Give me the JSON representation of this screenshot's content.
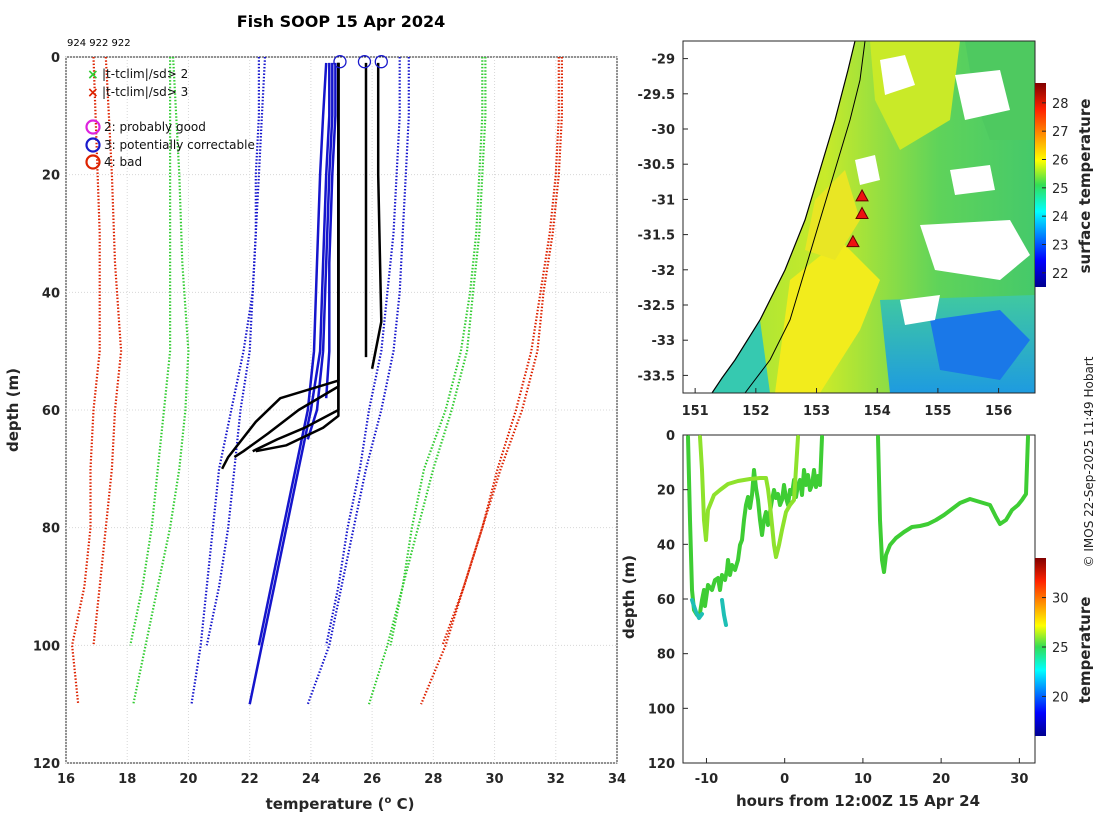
{
  "title": "Fish SOOP 15 Apr 2024",
  "profile_ids": "924 922 922",
  "credit": "© IMOS 22-Sep-2025 11:49 Hobart",
  "colors": {
    "clim2": "#33cc33",
    "clim3": "#dd2200",
    "flag3": "#1515cc",
    "good": "#000000",
    "circle_blue": "#1a1acc"
  },
  "legend": {
    "items": [
      {
        "marker": "x",
        "color": "#33cc33",
        "label": "|t-tclim|/sd> 2"
      },
      {
        "marker": "x",
        "color": "#dd2200",
        "label": "|t-tclim|/sd> 3"
      },
      {
        "marker": "o",
        "color": "#dd22dd",
        "label": "2: probably good"
      },
      {
        "marker": "o",
        "color": "#1a1acc",
        "label": "3: potentially correctable"
      },
      {
        "marker": "o",
        "color": "#dd2200",
        "label": "4: bad"
      }
    ]
  },
  "chart_data": [
    {
      "type": "line",
      "name": "profile",
      "title": "Fish SOOP 15 Apr 2024",
      "xlabel": "temperature (",
      "xlabel_sup": "o",
      "xlabel_suffix": " C)",
      "ylabel": "depth (m)",
      "xlim": [
        16,
        34
      ],
      "ylim": [
        0,
        120
      ],
      "xticks": [
        "16",
        "18",
        "20",
        "22",
        "24",
        "26",
        "28",
        "30",
        "32",
        "34"
      ],
      "yticks": [
        "0",
        "20",
        "40",
        "60",
        "80",
        "100",
        "120"
      ],
      "y_reversed": true,
      "grid": true,
      "clim_lines": [
        {
          "class": "clim3",
          "points": [
            [
              17.3,
              0
            ],
            [
              17.4,
              10
            ],
            [
              17.5,
              20
            ],
            [
              17.6,
              35
            ],
            [
              17.8,
              50
            ],
            [
              17.6,
              60
            ],
            [
              17.5,
              70
            ],
            [
              17.3,
              80
            ],
            [
              17.1,
              90
            ],
            [
              16.9,
              100
            ]
          ]
        },
        {
          "class": "clim3",
          "points": [
            [
              16.9,
              0
            ],
            [
              17.0,
              15
            ],
            [
              17.1,
              30
            ],
            [
              17.1,
              50
            ],
            [
              16.9,
              60
            ],
            [
              16.8,
              70
            ],
            [
              16.8,
              80
            ],
            [
              16.6,
              90
            ],
            [
              16.2,
              100
            ],
            [
              16.4,
              110
            ]
          ]
        },
        {
          "class": "clim2",
          "points": [
            [
              19.5,
              0
            ],
            [
              19.6,
              10
            ],
            [
              19.7,
              20
            ],
            [
              19.8,
              35
            ],
            [
              20.0,
              50
            ],
            [
              19.9,
              60
            ],
            [
              19.7,
              70
            ],
            [
              19.4,
              80
            ],
            [
              19.0,
              90
            ],
            [
              18.6,
              100
            ],
            [
              18.2,
              110
            ]
          ]
        },
        {
          "class": "clim2",
          "points": [
            [
              19.4,
              0
            ],
            [
              19.4,
              10
            ],
            [
              19.4,
              20
            ],
            [
              19.4,
              35
            ],
            [
              19.4,
              50
            ],
            [
              19.2,
              60
            ],
            [
              19.0,
              70
            ],
            [
              18.8,
              80
            ],
            [
              18.5,
              90
            ],
            [
              18.1,
              100
            ]
          ]
        },
        {
          "class": "flag3",
          "points": [
            [
              22.5,
              0
            ],
            [
              22.4,
              10
            ],
            [
              22.3,
              20
            ],
            [
              22.2,
              30
            ],
            [
              22.1,
              40
            ],
            [
              21.8,
              50
            ],
            [
              21.4,
              60
            ],
            [
              21.0,
              70
            ],
            [
              20.8,
              80
            ],
            [
              20.6,
              90
            ],
            [
              20.4,
              100
            ],
            [
              20.1,
              110
            ]
          ]
        },
        {
          "class": "flag3",
          "points": [
            [
              22.3,
              0
            ],
            [
              22.3,
              10
            ],
            [
              22.2,
              20
            ],
            [
              22.2,
              30
            ],
            [
              22.1,
              40
            ],
            [
              22.0,
              50
            ],
            [
              21.7,
              60
            ],
            [
              21.5,
              70
            ],
            [
              21.3,
              80
            ],
            [
              21.0,
              90
            ],
            [
              20.6,
              100
            ]
          ]
        },
        {
          "class": "flag3",
          "points": [
            [
              27.2,
              0
            ],
            [
              27.2,
              10
            ],
            [
              27.1,
              20
            ],
            [
              27.0,
              30
            ],
            [
              26.9,
              40
            ],
            [
              26.7,
              50
            ],
            [
              26.3,
              60
            ],
            [
              25.8,
              70
            ],
            [
              25.4,
              80
            ],
            [
              25.0,
              90
            ],
            [
              24.6,
              100
            ],
            [
              23.9,
              110
            ]
          ]
        },
        {
          "class": "flag3",
          "points": [
            [
              26.9,
              0
            ],
            [
              26.9,
              10
            ],
            [
              26.8,
              20
            ],
            [
              26.7,
              30
            ],
            [
              26.5,
              40
            ],
            [
              26.3,
              50
            ],
            [
              25.9,
              60
            ],
            [
              25.6,
              70
            ],
            [
              25.2,
              80
            ],
            [
              24.9,
              90
            ],
            [
              24.5,
              100
            ]
          ]
        },
        {
          "class": "clim2",
          "points": [
            [
              29.7,
              0
            ],
            [
              29.7,
              10
            ],
            [
              29.6,
              20
            ],
            [
              29.5,
              30
            ],
            [
              29.3,
              40
            ],
            [
              29.1,
              50
            ],
            [
              28.6,
              60
            ],
            [
              28.0,
              70
            ],
            [
              27.5,
              80
            ],
            [
              27.0,
              90
            ],
            [
              26.5,
              100
            ],
            [
              25.9,
              110
            ]
          ]
        },
        {
          "class": "clim2",
          "points": [
            [
              29.6,
              0
            ],
            [
              29.6,
              10
            ],
            [
              29.5,
              20
            ],
            [
              29.4,
              30
            ],
            [
              29.2,
              40
            ],
            [
              28.9,
              50
            ],
            [
              28.4,
              60
            ],
            [
              27.7,
              70
            ],
            [
              27.3,
              80
            ],
            [
              27.0,
              90
            ],
            [
              26.6,
              100
            ]
          ]
        },
        {
          "class": "clim3",
          "points": [
            [
              32.2,
              0
            ],
            [
              32.2,
              10
            ],
            [
              32.1,
              20
            ],
            [
              31.9,
              30
            ],
            [
              31.6,
              40
            ],
            [
              31.4,
              50
            ],
            [
              30.9,
              60
            ],
            [
              30.2,
              70
            ],
            [
              29.6,
              80
            ],
            [
              29.0,
              90
            ],
            [
              28.4,
              100
            ],
            [
              27.6,
              110
            ]
          ]
        },
        {
          "class": "clim3",
          "points": [
            [
              32.1,
              0
            ],
            [
              32.1,
              10
            ],
            [
              32.0,
              20
            ],
            [
              31.8,
              30
            ],
            [
              31.5,
              40
            ],
            [
              31.2,
              50
            ],
            [
              30.7,
              60
            ],
            [
              30.1,
              70
            ],
            [
              29.6,
              80
            ],
            [
              29.0,
              90
            ],
            [
              28.3,
              100
            ]
          ]
        }
      ],
      "flag3_profiles": [
        {
          "points": [
            [
              24.6,
              1
            ],
            [
              24.6,
              10
            ],
            [
              24.5,
              20
            ],
            [
              24.4,
              35
            ],
            [
              24.3,
              50
            ],
            [
              24.0,
              60
            ],
            [
              23.6,
              70
            ],
            [
              23.2,
              80
            ],
            [
              22.8,
              90
            ],
            [
              22.4,
              100
            ],
            [
              22.0,
              110
            ]
          ]
        },
        {
          "points": [
            [
              24.5,
              1
            ],
            [
              24.4,
              10
            ],
            [
              24.3,
              20
            ],
            [
              24.2,
              35
            ],
            [
              24.1,
              50
            ],
            [
              23.9,
              60
            ],
            [
              23.5,
              70
            ],
            [
              23.1,
              80
            ],
            [
              22.7,
              90
            ],
            [
              22.3,
              100
            ]
          ]
        },
        {
          "points": [
            [
              24.7,
              1
            ],
            [
              24.7,
              10
            ],
            [
              24.6,
              20
            ],
            [
              24.5,
              35
            ],
            [
              24.4,
              50
            ],
            [
              24.2,
              60
            ],
            [
              23.9,
              65
            ]
          ]
        },
        {
          "points": [
            [
              24.8,
              1
            ],
            [
              24.8,
              10
            ],
            [
              24.7,
              20
            ],
            [
              24.6,
              35
            ],
            [
              24.6,
              50
            ],
            [
              24.5,
              58
            ]
          ]
        }
      ],
      "good_profiles": [
        {
          "points": [
            [
              24.9,
              1
            ],
            [
              24.9,
              20
            ],
            [
              24.9,
              40
            ],
            [
              24.9,
              55
            ],
            [
              23.0,
              58
            ],
            [
              22.2,
              62
            ],
            [
              21.3,
              68
            ],
            [
              21.1,
              70
            ]
          ]
        },
        {
          "points": [
            [
              24.9,
              1
            ],
            [
              24.9,
              20
            ],
            [
              24.9,
              40
            ],
            [
              24.9,
              56
            ],
            [
              23.6,
              60
            ],
            [
              22.6,
              64
            ],
            [
              21.8,
              67
            ],
            [
              21.5,
              68
            ]
          ]
        },
        {
          "points": [
            [
              24.9,
              1
            ],
            [
              24.9,
              25
            ],
            [
              24.9,
              45
            ],
            [
              24.9,
              60
            ],
            [
              23.8,
              63
            ],
            [
              22.9,
              65
            ],
            [
              22.1,
              67
            ]
          ]
        },
        {
          "points": [
            [
              24.9,
              1
            ],
            [
              24.9,
              30
            ],
            [
              24.9,
              50
            ],
            [
              24.9,
              61
            ],
            [
              24.4,
              63
            ],
            [
              23.2,
              66
            ],
            [
              22.2,
              67
            ]
          ]
        },
        {
          "points": [
            [
              25.8,
              1
            ],
            [
              25.8,
              20
            ],
            [
              25.8,
              40
            ],
            [
              25.8,
              51
            ]
          ]
        },
        {
          "points": [
            [
              26.2,
              1
            ],
            [
              26.2,
              20
            ],
            [
              26.3,
              45
            ],
            [
              26.0,
              53
            ]
          ]
        }
      ],
      "top_circles": [
        [
          24.95,
          0.8
        ],
        [
          25.75,
          0.8
        ],
        [
          26.3,
          0.8
        ]
      ]
    },
    {
      "type": "heatmap",
      "name": "sst-map",
      "colorbar_label": "surface temperature",
      "xlim": [
        150.8,
        156.6
      ],
      "ylim": [
        -33.75,
        -28.75
      ],
      "xticks": [
        "151",
        "152",
        "153",
        "154",
        "155",
        "156"
      ],
      "yticks": [
        "-29",
        "-29.5",
        "-30",
        "-30.5",
        "-31",
        "-31.5",
        "-32",
        "-32.5",
        "-33",
        "-33.5"
      ],
      "colorbar_ticks": [
        "22",
        "23",
        "24",
        "25",
        "26",
        "27",
        "28"
      ],
      "colorbar_range": [
        21.5,
        28.7
      ],
      "markers": [
        [
          153.75,
          -30.95
        ],
        [
          153.75,
          -31.2
        ],
        [
          153.6,
          -31.6
        ]
      ]
    },
    {
      "type": "line",
      "name": "time-depth",
      "xlabel": "hours from 12:00Z 15 Apr 24",
      "ylabel": "depth (m)",
      "colorbar_label": "temperature",
      "colorbar_ticks": [
        "20",
        "25",
        "30"
      ],
      "colorbar_range": [
        16,
        34
      ],
      "xlim": [
        -13,
        32
      ],
      "ylim": [
        0,
        120
      ],
      "xticks": [
        "-10",
        "0",
        "10",
        "20",
        "30"
      ],
      "yticks": [
        "0",
        "20",
        "40",
        "60",
        "80",
        "100",
        "120"
      ],
      "y_reversed": true
    }
  ]
}
